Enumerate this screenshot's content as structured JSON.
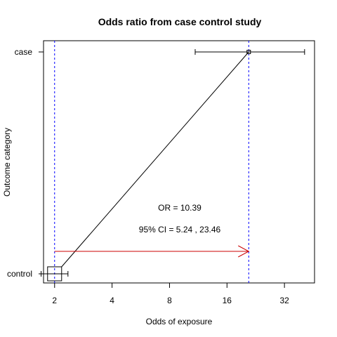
{
  "chart_data": {
    "type": "scatter",
    "title": "Odds ratio from case control study",
    "xlabel": "Odds of exposure",
    "ylabel": "Outcome category",
    "x_scale": "log",
    "xlim": [
      1.75,
      46
    ],
    "x_ticks": [
      2,
      4,
      8,
      16,
      32
    ],
    "categories": [
      "control",
      "case"
    ],
    "points": [
      {
        "category": "control",
        "odds": 2.0,
        "ci": [
          1.7,
          2.35
        ]
      },
      {
        "category": "case",
        "odds": 20.8,
        "ci": [
          10.9,
          40.8
        ]
      }
    ],
    "reference_lines": [
      2.0,
      20.8
    ],
    "annotations": {
      "or_text": "OR =  10.39",
      "ci_text": "95% CI = 5.24 , 23.46"
    },
    "colors": {
      "reference_line": "#0000ff",
      "arrow": "#cc0000",
      "series": "#000000"
    }
  }
}
